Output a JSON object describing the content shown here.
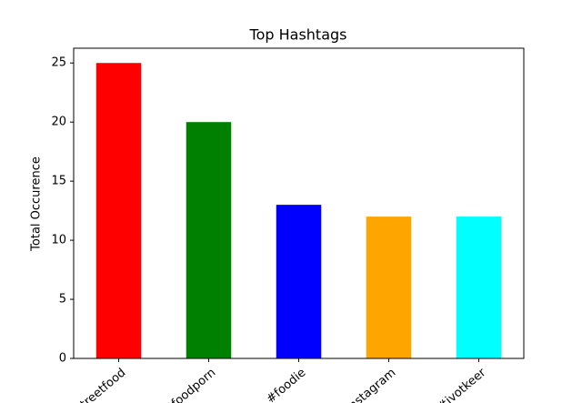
{
  "chart_data": {
    "type": "bar",
    "title": "Top Hashtags",
    "y_label": "Total Occurence",
    "categories": [
      "#streetfood",
      "#foodporn",
      "#foodie",
      "#instagram",
      "#ivotkeer"
    ],
    "values": [
      25,
      20,
      13,
      12,
      12
    ],
    "colors": [
      "#ff0000",
      "#008000",
      "#0000ff",
      "#ffa500",
      "#00ffff"
    ],
    "ylim": [
      0,
      26.25
    ],
    "yticks": [
      0,
      5,
      10,
      15,
      20,
      25
    ],
    "grid": false
  }
}
